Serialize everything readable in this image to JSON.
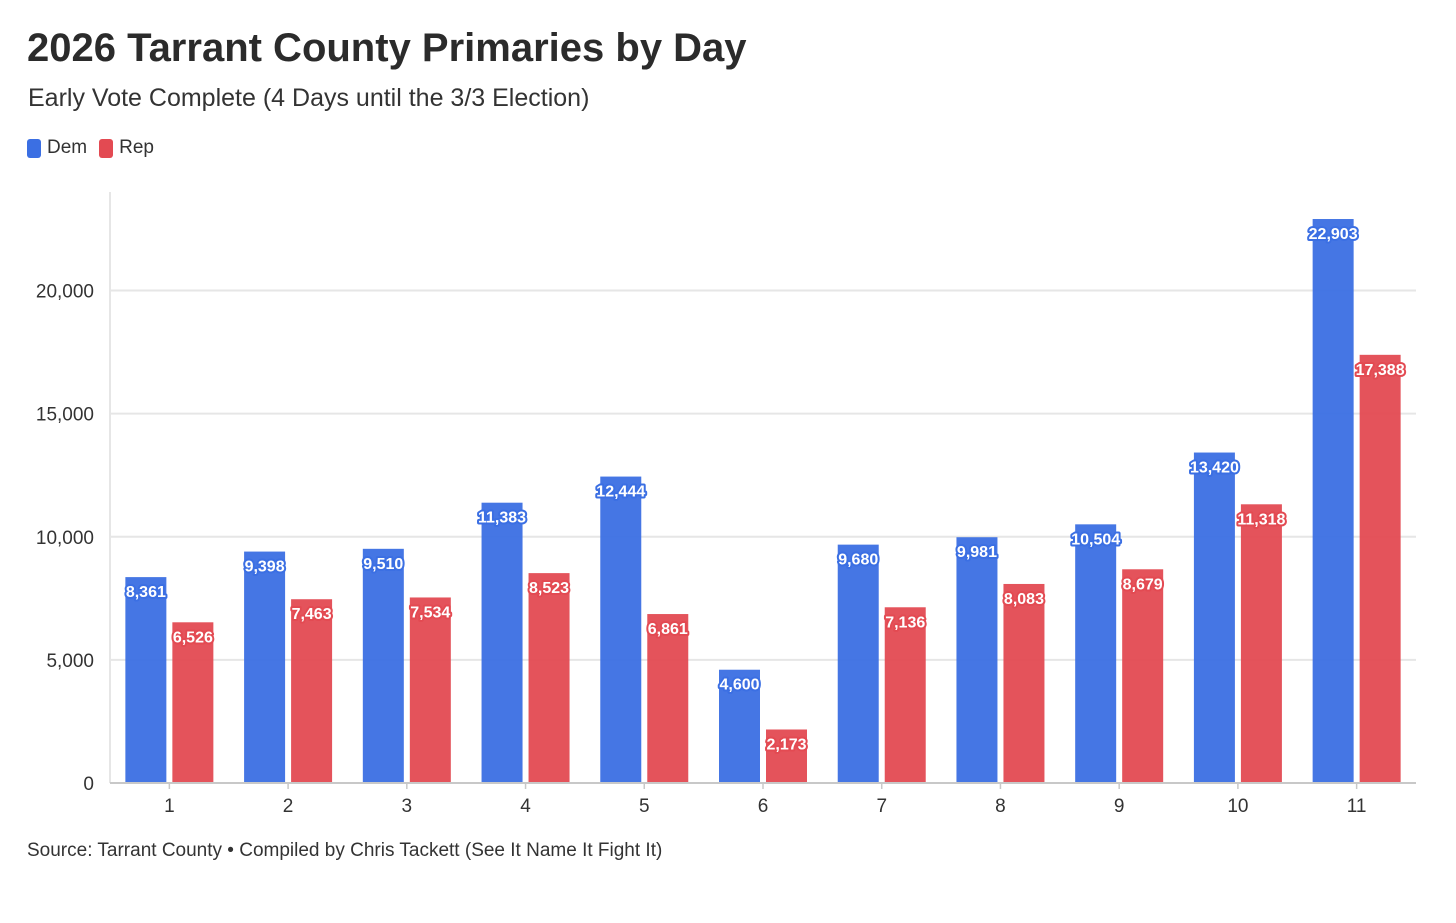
{
  "chart_data": {
    "type": "bar",
    "title": "2026 Tarrant County Primaries by Day",
    "subtitle": "Early Vote Complete (4 Days until the 3/3 Election)",
    "categories": [
      "1",
      "2",
      "3",
      "4",
      "5",
      "6",
      "7",
      "8",
      "9",
      "10",
      "11"
    ],
    "series": [
      {
        "name": "Dem",
        "color": "#3b6fe3",
        "values": [
          8361,
          9398,
          9510,
          11383,
          12444,
          4600,
          9680,
          9981,
          10504,
          13420,
          22903
        ],
        "labels": [
          "8,361",
          "9,398",
          "9,510",
          "11,383",
          "12,444",
          "4,600",
          "9,680",
          "9,981",
          "10,504",
          "13,420",
          "22,903"
        ]
      },
      {
        "name": "Rep",
        "color": "#e34a52",
        "values": [
          6526,
          7463,
          7534,
          8523,
          6861,
          2173,
          7136,
          8083,
          8679,
          11318,
          17388
        ],
        "labels": [
          "6,526",
          "7,463",
          "7,534",
          "8,523",
          "6,861",
          "2,173",
          "7,136",
          "8,083",
          "8,679",
          "11,318",
          "17,388"
        ]
      }
    ],
    "yticks": [
      0,
      5000,
      10000,
      15000,
      20000
    ],
    "ytick_labels": [
      "0",
      "5,000",
      "10,000",
      "15,000",
      "20,000"
    ],
    "ylim": [
      0,
      24000
    ],
    "grid": true,
    "legend_position": "top-left",
    "source": "Source: Tarrant County • Compiled by Chris Tackett (See It Name It Fight It)"
  }
}
